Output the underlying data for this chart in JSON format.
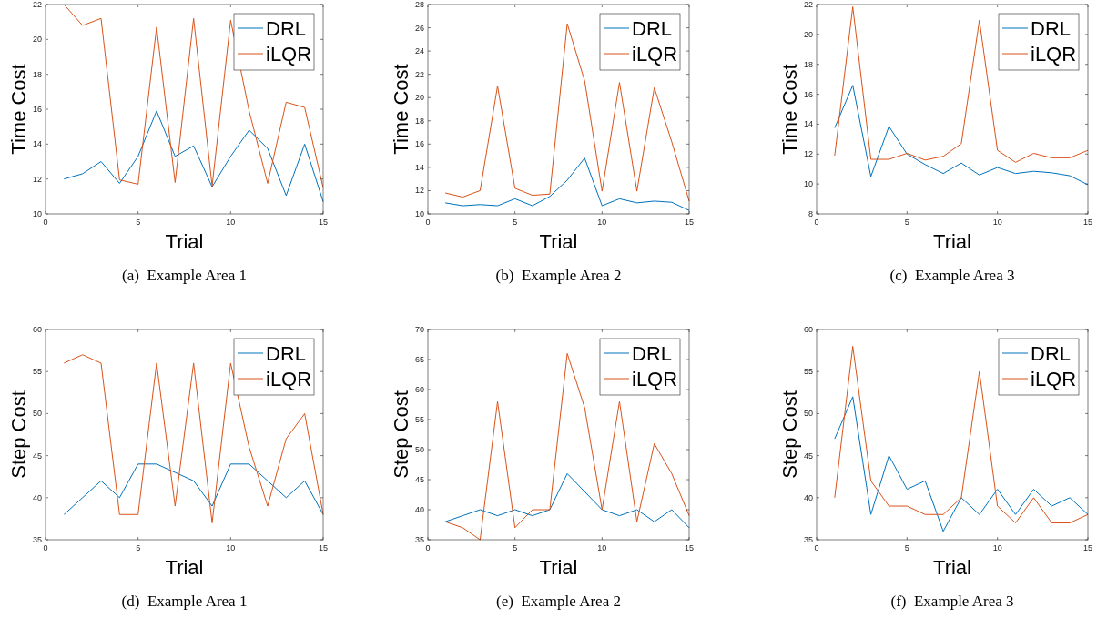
{
  "chart_data": [
    {
      "type": "line",
      "xlabel": "Trial",
      "ylabel": "Time Cost",
      "annotations": [
        "(a)  Example Area 1"
      ],
      "x": [
        1,
        2,
        3,
        4,
        5,
        6,
        7,
        8,
        9,
        10,
        11,
        12,
        13,
        14,
        15
      ],
      "xlim": [
        0,
        15
      ],
      "xticks": [
        0,
        5,
        10,
        15
      ],
      "ylim": [
        10,
        22
      ],
      "yticks": [
        10,
        12,
        14,
        16,
        18,
        20,
        22
      ],
      "legend": "top right",
      "series": [
        {
          "name": "DRL",
          "color": "#0072bd",
          "values": [
            12,
            12.3,
            13,
            11.75,
            13.3,
            15.9,
            13.3,
            13.9,
            11.55,
            13.3,
            14.8,
            13.75,
            11.05,
            14,
            10.7
          ]
        },
        {
          "name": "iLQR",
          "color": "#d95319",
          "values": [
            22,
            20.8,
            21.2,
            11.95,
            11.7,
            20.7,
            11.8,
            21.2,
            11.6,
            21.1,
            15.9,
            11.75,
            16.4,
            16.1,
            11.5
          ]
        }
      ]
    },
    {
      "type": "line",
      "xlabel": "Trial",
      "ylabel": "Time Cost",
      "annotations": [
        "(b)  Example Area 2"
      ],
      "x": [
        1,
        2,
        3,
        4,
        5,
        6,
        7,
        8,
        9,
        10,
        11,
        12,
        13,
        14,
        15
      ],
      "xlim": [
        0,
        15
      ],
      "xticks": [
        0,
        5,
        10,
        15
      ],
      "ylim": [
        10,
        28
      ],
      "yticks": [
        10,
        12,
        14,
        16,
        18,
        20,
        22,
        24,
        26,
        28
      ],
      "legend": "top right",
      "series": [
        {
          "name": "DRL",
          "color": "#0072bd",
          "values": [
            10.95,
            10.7,
            10.8,
            10.7,
            11.3,
            10.7,
            11.5,
            12.9,
            14.8,
            10.7,
            11.3,
            10.95,
            11.1,
            11,
            10.3
          ]
        },
        {
          "name": "iLQR",
          "color": "#d95319",
          "values": [
            11.8,
            11.45,
            12,
            21,
            12.2,
            11.6,
            11.7,
            26.35,
            21.45,
            11.95,
            21.3,
            11.95,
            20.85,
            16.2,
            11.1
          ]
        }
      ]
    },
    {
      "type": "line",
      "xlabel": "Trial",
      "ylabel": "Time Cost",
      "annotations": [
        "(c)  Example Area 3"
      ],
      "x": [
        1,
        2,
        3,
        4,
        5,
        6,
        7,
        8,
        9,
        10,
        11,
        12,
        13,
        14,
        15
      ],
      "xlim": [
        0,
        15
      ],
      "xticks": [
        0,
        5,
        10,
        15
      ],
      "ylim": [
        8,
        22
      ],
      "yticks": [
        8,
        10,
        12,
        14,
        16,
        18,
        20,
        22
      ],
      "legend": "top right",
      "series": [
        {
          "name": "DRL",
          "color": "#0072bd",
          "values": [
            13.75,
            16.6,
            10.5,
            13.85,
            12,
            11.3,
            10.7,
            11.4,
            10.6,
            11.1,
            10.7,
            10.85,
            10.75,
            10.55,
            9.95
          ]
        },
        {
          "name": "iLQR",
          "color": "#d95319",
          "values": [
            11.9,
            21.85,
            11.65,
            11.65,
            12.05,
            11.6,
            11.85,
            12.7,
            20.95,
            12.25,
            11.45,
            12.05,
            11.75,
            11.75,
            12.25
          ]
        }
      ]
    },
    {
      "type": "line",
      "xlabel": "Trial",
      "ylabel": "Step Cost",
      "annotations": [
        "(d)  Example Area 1"
      ],
      "x": [
        1,
        2,
        3,
        4,
        5,
        6,
        7,
        8,
        9,
        10,
        11,
        12,
        13,
        14,
        15
      ],
      "xlim": [
        0,
        15
      ],
      "xticks": [
        0,
        5,
        10,
        15
      ],
      "ylim": [
        35,
        60
      ],
      "yticks": [
        35,
        40,
        45,
        50,
        55,
        60
      ],
      "legend": "top right",
      "series": [
        {
          "name": "DRL",
          "color": "#0072bd",
          "values": [
            38,
            40,
            42,
            40,
            44,
            44,
            43,
            42,
            39,
            44,
            44,
            42,
            40,
            42,
            38
          ]
        },
        {
          "name": "iLQR",
          "color": "#d95319",
          "values": [
            56,
            57,
            56,
            38,
            38,
            56,
            39,
            56,
            37,
            56,
            46,
            39,
            47,
            50,
            38
          ]
        }
      ]
    },
    {
      "type": "line",
      "xlabel": "Trial",
      "ylabel": "Step Cost",
      "annotations": [
        "(e)  Example Area 2"
      ],
      "x": [
        1,
        2,
        3,
        4,
        5,
        6,
        7,
        8,
        9,
        10,
        11,
        12,
        13,
        14,
        15
      ],
      "xlim": [
        0,
        15
      ],
      "xticks": [
        0,
        5,
        10,
        15
      ],
      "ylim": [
        35,
        70
      ],
      "yticks": [
        35,
        40,
        45,
        50,
        55,
        60,
        65,
        70
      ],
      "legend": "top right",
      "series": [
        {
          "name": "DRL",
          "color": "#0072bd",
          "values": [
            38,
            39,
            40,
            39,
            40,
            39,
            40,
            46,
            43,
            40,
            39,
            40,
            38,
            40,
            37
          ]
        },
        {
          "name": "iLQR",
          "color": "#d95319",
          "values": [
            38,
            37,
            35,
            58,
            37,
            40,
            40,
            66,
            57,
            40,
            58,
            38,
            51,
            46,
            39
          ]
        }
      ]
    },
    {
      "type": "line",
      "xlabel": "Trial",
      "ylabel": "Step Cost",
      "annotations": [
        "(f)  Example Area 3"
      ],
      "x": [
        1,
        2,
        3,
        4,
        5,
        6,
        7,
        8,
        9,
        10,
        11,
        12,
        13,
        14,
        15
      ],
      "xlim": [
        0,
        15
      ],
      "xticks": [
        0,
        5,
        10,
        15
      ],
      "ylim": [
        35,
        60
      ],
      "yticks": [
        35,
        40,
        45,
        50,
        55,
        60
      ],
      "legend": "top right",
      "series": [
        {
          "name": "DRL",
          "color": "#0072bd",
          "values": [
            47,
            52,
            38,
            45,
            41,
            42,
            36,
            40,
            38,
            41,
            38,
            41,
            39,
            40,
            38
          ]
        },
        {
          "name": "iLQR",
          "color": "#d95319",
          "values": [
            40,
            58,
            42,
            39,
            39,
            38,
            38,
            40,
            55,
            39,
            37,
            40,
            37,
            37,
            38
          ]
        }
      ]
    }
  ]
}
